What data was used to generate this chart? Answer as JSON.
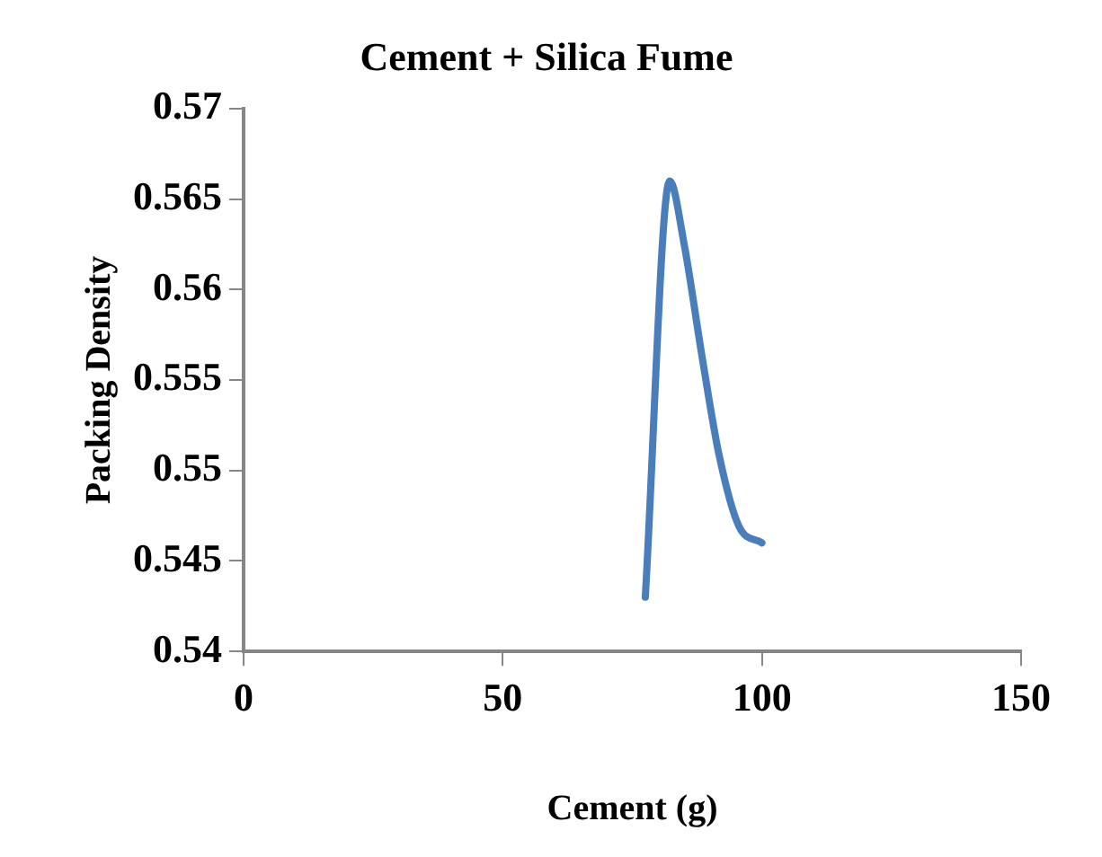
{
  "chart_data": {
    "type": "line",
    "title": "Cement + Silica Fume",
    "xlabel": "Cement (g)",
    "ylabel": "Packing Density",
    "series": [
      {
        "color": "#4a7ebb",
        "x": [
          77.5,
          82.2,
          85,
          88.5,
          91.7,
          95.6,
          100
        ],
        "values": [
          0.543,
          0.566,
          0.5625,
          0.5562,
          0.5509,
          0.5469,
          0.546
        ]
      }
    ],
    "xlim": [
      0,
      150
    ],
    "xticks": [
      0,
      50,
      100,
      150
    ],
    "ylim": [
      0.54,
      0.57
    ],
    "yticks": [
      0.54,
      0.545,
      0.55,
      0.555,
      0.56,
      0.565,
      0.57
    ],
    "grid": false,
    "legend": false,
    "marker": "none",
    "line_style": "solid"
  }
}
